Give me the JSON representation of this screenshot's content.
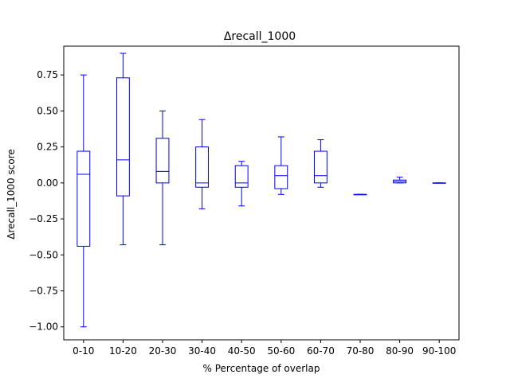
{
  "chart_data": {
    "type": "box",
    "title": "Δrecall_1000",
    "xlabel": "% Percentage of overlap",
    "ylabel": "Δrecall_1000 score",
    "ylim": [
      -1.09,
      0.95
    ],
    "yticks": [
      -1.0,
      -0.75,
      -0.5,
      -0.25,
      0.0,
      0.25,
      0.5,
      0.75
    ],
    "ytick_labels": [
      "−1.00",
      "−0.75",
      "−0.50",
      "−0.25",
      "0.00",
      "0.25",
      "0.50",
      "0.75"
    ],
    "categories": [
      "0-10",
      "10-20",
      "20-30",
      "30-40",
      "40-50",
      "50-60",
      "60-70",
      "70-80",
      "80-90",
      "90-100"
    ],
    "boxes": [
      {
        "category": "0-10",
        "whisker_low": -1.0,
        "q1": -0.44,
        "median": 0.06,
        "q3": 0.22,
        "whisker_high": 0.75
      },
      {
        "category": "10-20",
        "whisker_low": -0.43,
        "q1": -0.09,
        "median": 0.16,
        "q3": 0.73,
        "whisker_high": 0.9
      },
      {
        "category": "20-30",
        "whisker_low": -0.43,
        "q1": 0.0,
        "median": 0.08,
        "q3": 0.31,
        "whisker_high": 0.5
      },
      {
        "category": "30-40",
        "whisker_low": -0.18,
        "q1": -0.03,
        "median": 0.0,
        "q3": 0.25,
        "whisker_high": 0.44
      },
      {
        "category": "40-50",
        "whisker_low": -0.16,
        "q1": -0.03,
        "median": 0.0,
        "q3": 0.12,
        "whisker_high": 0.15
      },
      {
        "category": "50-60",
        "whisker_low": -0.08,
        "q1": -0.04,
        "median": 0.05,
        "q3": 0.12,
        "whisker_high": 0.32
      },
      {
        "category": "60-70",
        "whisker_low": -0.03,
        "q1": 0.0,
        "median": 0.05,
        "q3": 0.22,
        "whisker_high": 0.3
      },
      {
        "category": "70-80",
        "whisker_low": -0.08,
        "q1": -0.08,
        "median": -0.08,
        "q3": -0.08,
        "whisker_high": -0.08
      },
      {
        "category": "80-90",
        "whisker_low": 0.0,
        "q1": 0.0,
        "median": 0.01,
        "q3": 0.02,
        "whisker_high": 0.04
      },
      {
        "category": "90-100",
        "whisker_low": 0.0,
        "q1": 0.0,
        "median": 0.0,
        "q3": 0.0,
        "whisker_high": 0.0
      }
    ],
    "color": "#0000ff",
    "grid": false,
    "legend": "none"
  }
}
